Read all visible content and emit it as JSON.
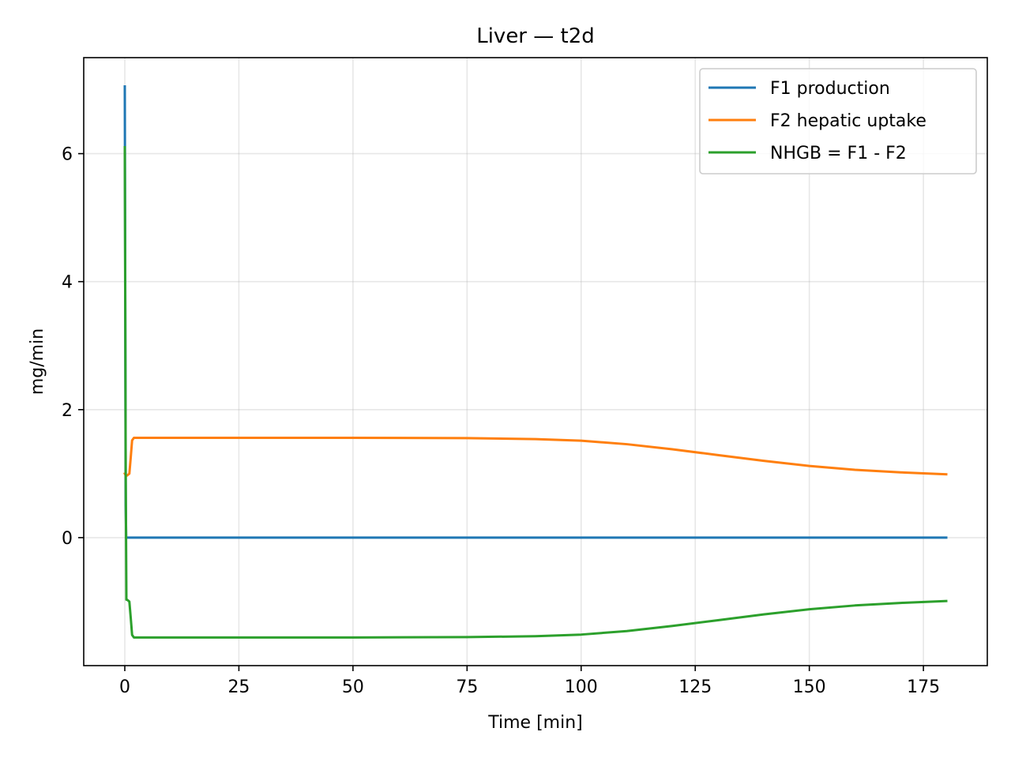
{
  "chart_data": {
    "type": "line",
    "title": "Liver — t2d",
    "xlabel": "Time [min]",
    "ylabel": "mg/min",
    "xlim": [
      -9,
      189
    ],
    "ylim": [
      -2.0,
      7.5
    ],
    "xticks": [
      0,
      25,
      50,
      75,
      100,
      125,
      150,
      175
    ],
    "yticks": [
      0,
      2,
      4,
      6
    ],
    "grid": true,
    "legend_position": "top-right",
    "series": [
      {
        "name": "F1 production",
        "color": "#1f77b4",
        "x": [
          0,
          0.2,
          0.3,
          180
        ],
        "y": [
          7.05,
          0.5,
          0.0,
          0.0
        ]
      },
      {
        "name": "F2 hepatic uptake",
        "color": "#ff7f0e",
        "x": [
          0,
          0.2,
          0.5,
          1.0,
          1.3,
          1.6,
          2.0,
          25,
          50,
          75,
          90,
          100,
          110,
          120,
          130,
          140,
          150,
          160,
          170,
          180
        ],
        "y": [
          1.0,
          0.97,
          0.97,
          1.0,
          1.25,
          1.52,
          1.56,
          1.56,
          1.56,
          1.555,
          1.54,
          1.515,
          1.46,
          1.38,
          1.29,
          1.2,
          1.12,
          1.06,
          1.02,
          0.99
        ]
      },
      {
        "name": "NHGB = F1 - F2",
        "color": "#2ca02c",
        "x": [
          0,
          0.2,
          0.35,
          0.5,
          1.0,
          1.3,
          1.6,
          2.0,
          25,
          50,
          75,
          90,
          100,
          110,
          120,
          130,
          140,
          150,
          160,
          170,
          180
        ],
        "y": [
          6.1,
          1.0,
          -0.97,
          -0.97,
          -1.0,
          -1.25,
          -1.52,
          -1.56,
          -1.56,
          -1.56,
          -1.555,
          -1.54,
          -1.515,
          -1.46,
          -1.38,
          -1.29,
          -1.2,
          -1.12,
          -1.06,
          -1.02,
          -0.99
        ]
      }
    ]
  }
}
